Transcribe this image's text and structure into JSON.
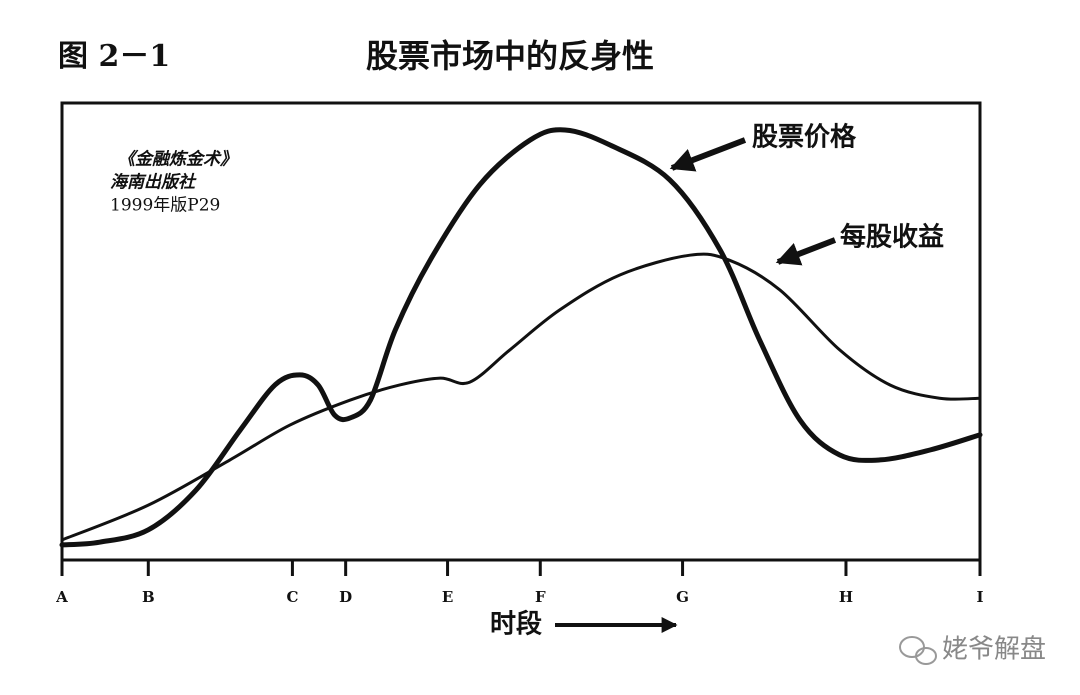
{
  "chart_data": {
    "type": "line",
    "figure_label": "图 2－1",
    "title": "股票市场中的反身性",
    "xlabel": "时段",
    "annotation": [
      "《金融炼金术》",
      "海南出版社",
      "1999年版P29"
    ],
    "watermark": "姥爷解盘",
    "xlim": [
      0,
      100
    ],
    "ylim": [
      0,
      100
    ],
    "xticks": [
      {
        "value": 0,
        "label": "A"
      },
      {
        "value": 9.4,
        "label": "B"
      },
      {
        "value": 25.1,
        "label": "C"
      },
      {
        "value": 30.9,
        "label": "D"
      },
      {
        "value": 42.0,
        "label": "E"
      },
      {
        "value": 52.1,
        "label": "F"
      },
      {
        "value": 67.6,
        "label": "G"
      },
      {
        "value": 85.4,
        "label": "H"
      },
      {
        "value": 100,
        "label": "I"
      }
    ],
    "grid": false,
    "series": [
      {
        "name": "股票价格",
        "color": "#111111",
        "width": 5,
        "x": [
          0,
          4.1,
          9.4,
          14.6,
          19.4,
          23.2,
          25.9,
          27.9,
          29.7,
          31.4,
          33.6,
          36.3,
          40.1,
          45.5,
          51.0,
          54.8,
          59.7,
          66.2,
          71.7,
          76.0,
          80.4,
          84.7,
          89.1,
          94.6,
          100
        ],
        "values": [
          3.3,
          3.9,
          6.6,
          15.3,
          28.4,
          38.3,
          40.5,
          38.3,
          31.7,
          31.1,
          35.0,
          50.3,
          65.6,
          82.1,
          91.9,
          94.1,
          90.8,
          83.2,
          67.8,
          48.1,
          30.6,
          23.0,
          21.9,
          24.1,
          27.4
        ]
      },
      {
        "name": "每股收益",
        "color": "#111111",
        "width": 3,
        "x": [
          0,
          9.4,
          18.3,
          24.8,
          31.4,
          36.8,
          41.2,
          44.4,
          48.8,
          54.2,
          60.8,
          68.4,
          72.7,
          78.2,
          84.7,
          90.2,
          95.6,
          100
        ],
        "values": [
          4.4,
          12.0,
          21.9,
          29.5,
          35.0,
          38.3,
          39.8,
          38.9,
          46.0,
          54.7,
          62.4,
          66.7,
          65.6,
          59.1,
          46.0,
          38.3,
          35.4,
          35.4
        ]
      }
    ]
  }
}
